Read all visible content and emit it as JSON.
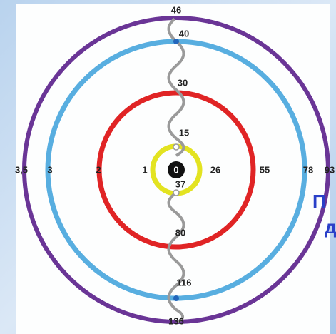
{
  "center": "0",
  "top_labels": [
    "46",
    "40",
    "30",
    "15"
  ],
  "bottom_labels": [
    "37",
    "80",
    "116",
    "136"
  ],
  "right_labels": [
    "26",
    "55",
    "78",
    "93"
  ],
  "left_labels": [
    "3,5",
    "3",
    "2",
    "1"
  ],
  "overlay_text": [
    "П",
    "д"
  ]
}
